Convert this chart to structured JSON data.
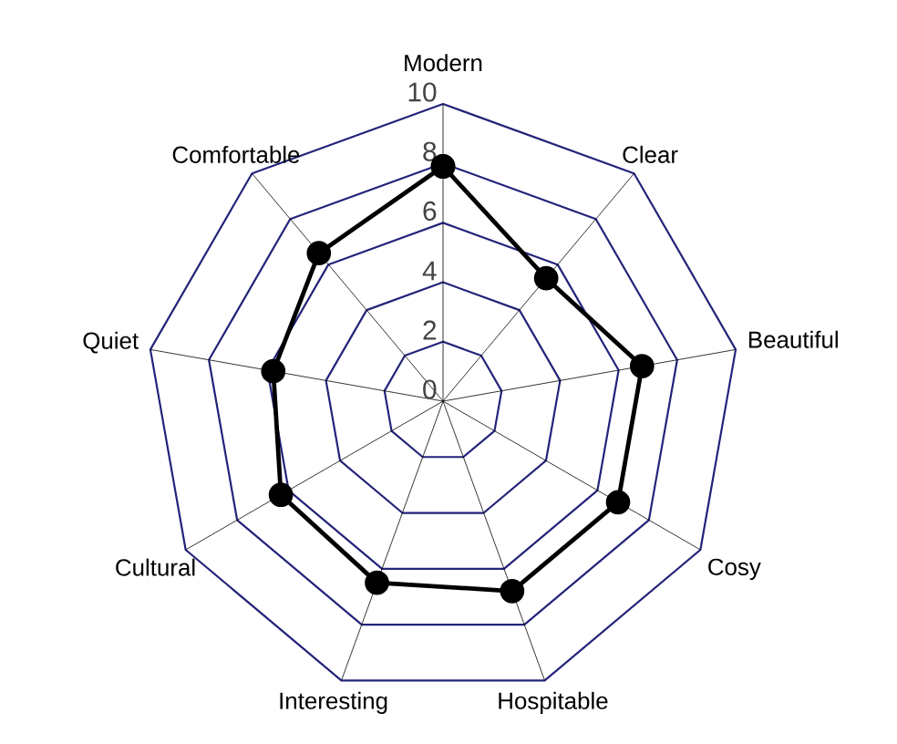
{
  "chart_data": {
    "type": "radar",
    "categories": [
      "Modern",
      "Clear",
      "Beautiful",
      "Cosy",
      "Hospitable",
      "Interesting",
      "Cultural",
      "Quiet",
      "Comfortable"
    ],
    "series": [
      {
        "color": "#000000",
        "values": [
          7.9,
          5.4,
          6.8,
          6.8,
          6.8,
          6.5,
          6.3,
          5.8,
          6.5
        ]
      }
    ],
    "ylim": [
      0,
      10
    ],
    "yticks": [
      0,
      2,
      4,
      6,
      8,
      10
    ],
    "grid": true,
    "marker": "circle",
    "line_style": "solid"
  }
}
